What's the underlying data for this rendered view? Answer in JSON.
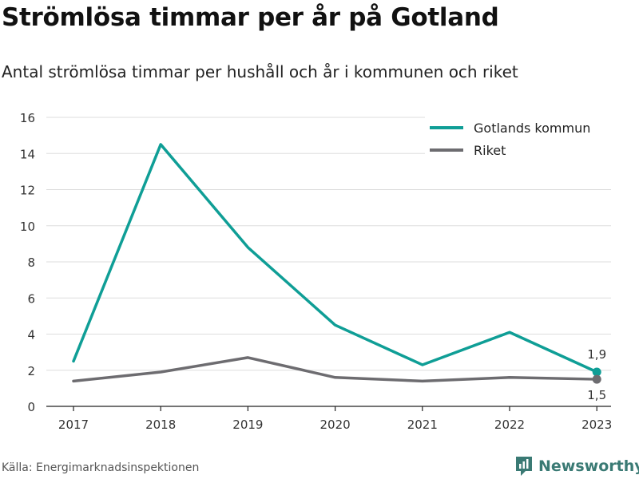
{
  "header": {
    "title": "Strömlösa timmar per år på Gotland",
    "subtitle": "Antal strömlösa timmar per hushåll och år i kommunen och riket"
  },
  "footer": {
    "source": "Källa: Energimarknadsinspektionen",
    "brand": "Newsworthy"
  },
  "colors": {
    "gotland": "#0f9e96",
    "riket": "#6d6c70",
    "grid": "#dddddd",
    "text": "#333333"
  },
  "chart_data": {
    "type": "line",
    "x": [
      "2017",
      "2018",
      "2019",
      "2020",
      "2021",
      "2022",
      "2023"
    ],
    "ylim": [
      0,
      16
    ],
    "yticks": [
      0,
      2,
      4,
      6,
      8,
      10,
      12,
      14,
      16
    ],
    "grid": true,
    "legend_position": "top-right",
    "series": [
      {
        "name": "Gotlands kommun",
        "values": [
          2.5,
          14.5,
          8.8,
          4.5,
          2.3,
          4.1,
          1.9
        ],
        "end_label": "1,9"
      },
      {
        "name": "Riket",
        "values": [
          1.4,
          1.9,
          2.7,
          1.6,
          1.4,
          1.6,
          1.5
        ],
        "end_label": "1,5"
      }
    ]
  }
}
